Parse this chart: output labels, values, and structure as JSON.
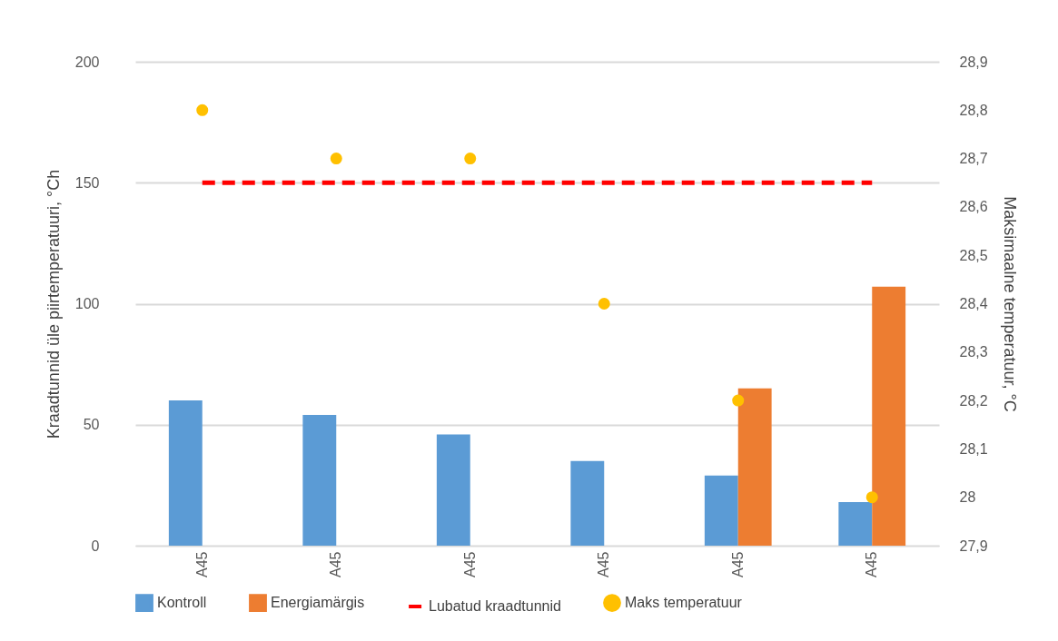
{
  "chart_data": {
    "type": "bar",
    "ylabel": "Kraadtunnid üle piirtemperatuuri, °Ch",
    "y2label": "Maksimaalne temperatuur, °C",
    "categories": [
      "A45",
      "A45",
      "A45",
      "A45",
      "A45",
      "A45"
    ],
    "series": [
      {
        "name": "Kontroll",
        "color": "#5b9bd5",
        "values": [
          60,
          54,
          46,
          35,
          29,
          18
        ]
      },
      {
        "name": "Energiamärgis",
        "color": "#ed7d31",
        "values": [
          null,
          null,
          null,
          null,
          65,
          107
        ]
      },
      {
        "name": "Lubatud kraadtunnid",
        "type": "line",
        "color": "#ff0000",
        "line_style": "dashed",
        "values": [
          150,
          150,
          150,
          150,
          150,
          150
        ]
      },
      {
        "name": "Maks temperatuur",
        "type": "scatter",
        "axis": "y2",
        "marker": "circle",
        "color": "#ffc000",
        "values": [
          28.8,
          28.7,
          28.7,
          28.4,
          28.2,
          28.0
        ]
      }
    ],
    "ylim": [
      0,
      200
    ],
    "yticks": [
      0,
      50,
      100,
      150,
      200
    ],
    "y2lim": [
      27.9,
      28.9
    ],
    "y2ticks": [
      {
        "value": 27.9,
        "label": "27,9"
      },
      28,
      {
        "value": 28.1,
        "label": "28,1"
      },
      {
        "value": 28.2,
        "label": "28,2"
      },
      {
        "value": 28.3,
        "label": "28,3"
      },
      {
        "value": 28.4,
        "label": "28,4"
      },
      {
        "value": 28.5,
        "label": "28,5"
      },
      {
        "value": 28.6,
        "label": "28,6"
      },
      {
        "value": 28.7,
        "label": "28,7"
      },
      {
        "value": 28.8,
        "label": "28,8"
      },
      {
        "value": 28.9,
        "label": "28,9"
      }
    ],
    "grid": "y",
    "legend": "bottom"
  }
}
